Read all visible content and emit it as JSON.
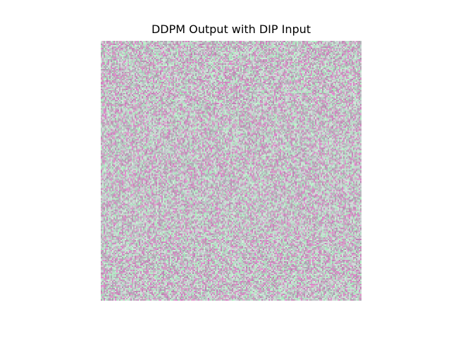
{
  "figure": {
    "title": "DDPM Output with DIP Input",
    "image": {
      "content": "noise-texture",
      "palette": {
        "base": "#c4c3c8",
        "pink": "#cf86c7",
        "mint": "#bfe8d6",
        "gray": "#a8a8ac"
      }
    }
  }
}
